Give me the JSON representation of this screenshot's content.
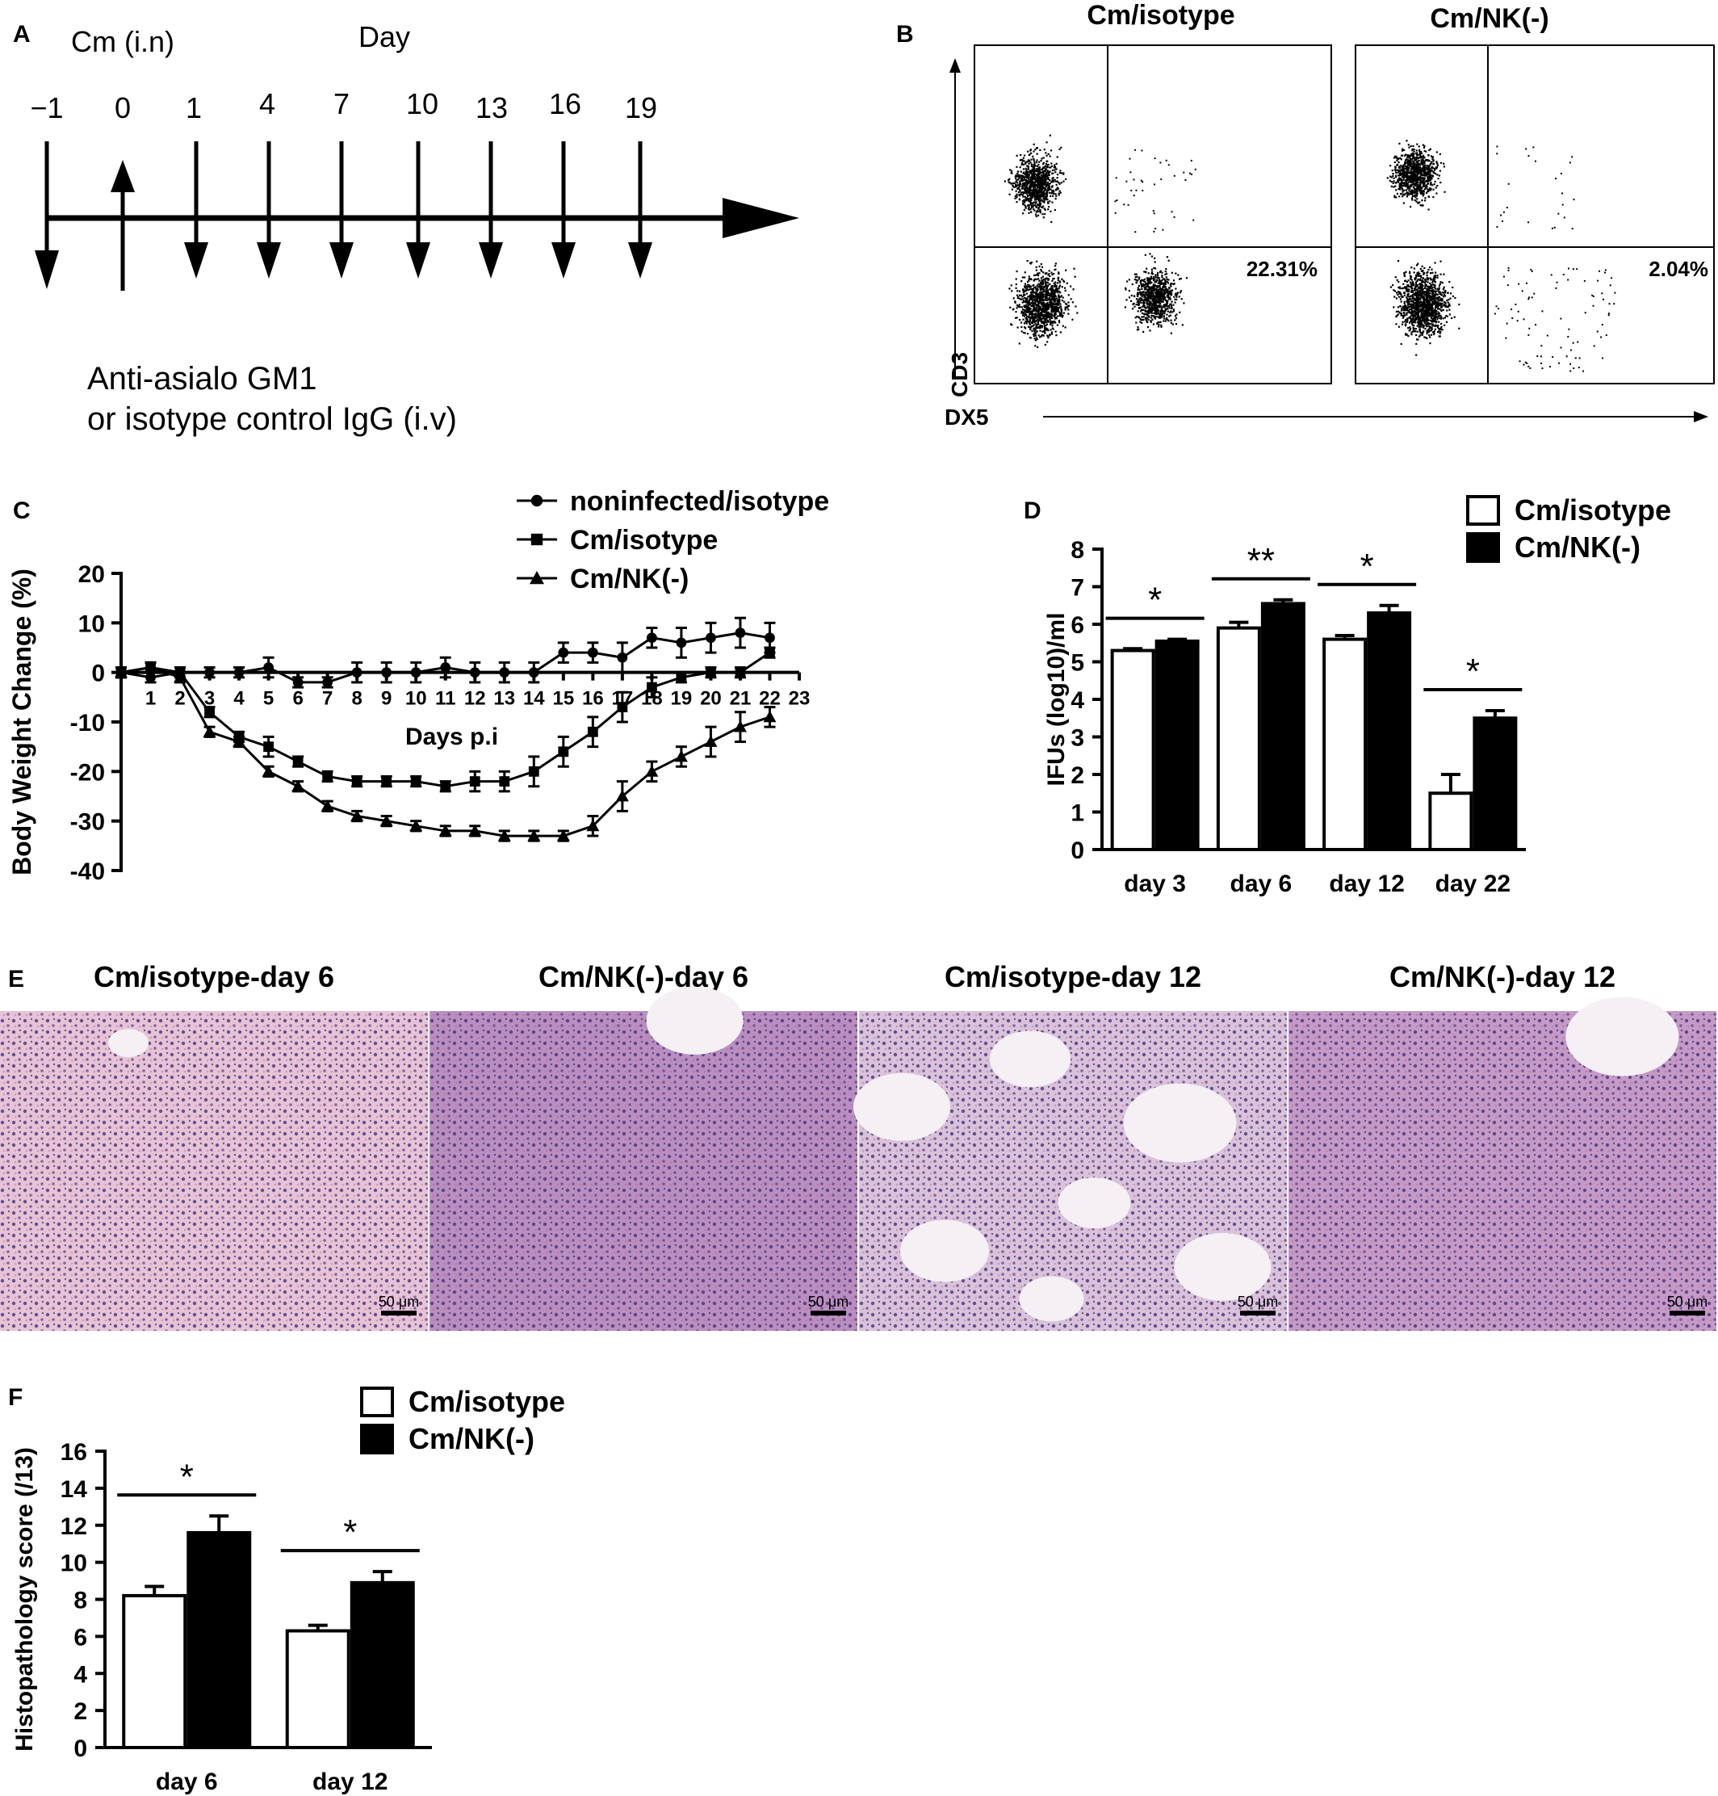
{
  "panels": {
    "A": {
      "letter": "A",
      "cm_label": "Cm (i.n)",
      "day_label": "Day",
      "days": [
        "−1",
        "0",
        "1",
        "4",
        "7",
        "10",
        "13",
        "16",
        "19"
      ],
      "treatment_line1": "Anti-asialo GM1",
      "treatment_line2": "or isotype control IgG (i.v)"
    },
    "B": {
      "letter": "B",
      "plots": [
        {
          "title": "Cm/isotype",
          "percent": "22.31%"
        },
        {
          "title": "Cm/NK(-)",
          "percent": "2.04%"
        }
      ],
      "y_axis": "CD3",
      "x_axis": "DX5"
    },
    "C": {
      "letter": "C"
    },
    "D": {
      "letter": "D"
    },
    "E": {
      "letter": "E",
      "images": [
        {
          "title": "Cm/isotype-day 6",
          "scale": "50 μm",
          "bg": "#e6c4d6"
        },
        {
          "title": "Cm/NK(-)-day 6",
          "scale": "50 μm",
          "bg": "#b98fc0"
        },
        {
          "title": "Cm/isotype-day 12",
          "scale": "50 μm",
          "bg": "#d9c3da"
        },
        {
          "title": "Cm/NK(-)-day 12",
          "scale": "50 μm",
          "bg": "#c49bc6"
        }
      ]
    },
    "F": {
      "letter": "F"
    }
  },
  "chart_data": [
    {
      "panel": "C",
      "type": "line",
      "ylabel": "Body Weight Change (%)",
      "xlabel": "Days p.i",
      "ylim": [
        -40,
        20
      ],
      "yticks": [
        20,
        10,
        0,
        -10,
        -20,
        -30,
        -40
      ],
      "xlim": [
        0,
        23
      ],
      "xticks": [
        1,
        2,
        3,
        4,
        5,
        6,
        7,
        8,
        9,
        10,
        11,
        12,
        13,
        14,
        15,
        16,
        17,
        18,
        19,
        20,
        21,
        22,
        23
      ],
      "legend_position": "top",
      "series": [
        {
          "name": "noninfected/isotype",
          "marker": "circle",
          "x": [
            0,
            1,
            2,
            3,
            4,
            5,
            6,
            7,
            8,
            9,
            10,
            11,
            12,
            13,
            14,
            15,
            16,
            17,
            18,
            19,
            20,
            21,
            22
          ],
          "y": [
            0,
            -1,
            0,
            0,
            0,
            1,
            -2,
            -2,
            0,
            0,
            0,
            1,
            0,
            0,
            0,
            4,
            4,
            3,
            7,
            6,
            7,
            8,
            7
          ],
          "err": [
            1,
            1,
            1,
            1,
            1,
            2,
            1,
            1,
            2,
            2,
            2,
            2,
            2,
            2,
            2,
            2,
            2,
            3,
            2,
            3,
            3,
            3,
            3
          ]
        },
        {
          "name": "Cm/isotype",
          "marker": "square",
          "x": [
            0,
            1,
            2,
            3,
            4,
            5,
            6,
            7,
            8,
            9,
            10,
            11,
            12,
            13,
            14,
            15,
            16,
            17,
            18,
            19,
            20,
            21,
            22
          ],
          "y": [
            0,
            1,
            0,
            -8,
            -13,
            -15,
            -18,
            -21,
            -22,
            -22,
            -22,
            -23,
            -22,
            -22,
            -20,
            -16,
            -12,
            -7,
            -3,
            -1,
            0,
            0,
            4
          ],
          "err": [
            1,
            1,
            1,
            1,
            1,
            2,
            1,
            1,
            1,
            1,
            1,
            1,
            2,
            2,
            3,
            3,
            3,
            3,
            2,
            1,
            1,
            1,
            1
          ]
        },
        {
          "name": "Cm/NK(-)",
          "marker": "triangle",
          "x": [
            0,
            1,
            2,
            3,
            4,
            5,
            6,
            7,
            8,
            9,
            10,
            11,
            12,
            13,
            14,
            15,
            16,
            17,
            18,
            19,
            20,
            21,
            22
          ],
          "y": [
            0,
            1,
            -1,
            -12,
            -14,
            -20,
            -23,
            -27,
            -29,
            -30,
            -31,
            -32,
            -32,
            -33,
            -33,
            -33,
            -31,
            -25,
            -20,
            -17,
            -14,
            -11,
            -9
          ],
          "err": [
            1,
            1,
            1,
            1,
            1,
            1,
            1,
            1,
            1,
            1,
            1,
            1,
            1,
            1,
            1,
            1,
            2,
            3,
            2,
            2,
            3,
            3,
            2
          ]
        }
      ]
    },
    {
      "panel": "D",
      "type": "bar",
      "ylabel": "IFUs (log10)/ml",
      "ylim": [
        0,
        8
      ],
      "yticks": [
        0,
        1,
        2,
        3,
        4,
        5,
        6,
        7,
        8
      ],
      "categories": [
        "day 3",
        "day 6",
        "day 12",
        "day 22"
      ],
      "legend_position": "top-right",
      "series": [
        {
          "name": "Cm/isotype",
          "fill": "#ffffff",
          "values": [
            5.3,
            5.9,
            5.6,
            1.5
          ],
          "err": [
            0.05,
            0.15,
            0.1,
            0.5
          ]
        },
        {
          "name": "Cm/NK(-)",
          "fill": "#000000",
          "values": [
            5.55,
            6.55,
            6.3,
            3.5
          ],
          "err": [
            0.05,
            0.1,
            0.2,
            0.2
          ]
        }
      ],
      "significance": [
        "*",
        "**",
        "*",
        "*"
      ]
    },
    {
      "panel": "F",
      "type": "bar",
      "ylabel": "Histopathology score (/13)",
      "ylim": [
        0,
        16
      ],
      "yticks": [
        0,
        2,
        4,
        6,
        8,
        10,
        12,
        14,
        16
      ],
      "categories": [
        "day 6",
        "day 12"
      ],
      "legend_position": "top",
      "series": [
        {
          "name": "Cm/isotype",
          "fill": "#ffffff",
          "values": [
            8.2,
            6.3
          ],
          "err": [
            0.5,
            0.3
          ]
        },
        {
          "name": "Cm/NK(-)",
          "fill": "#000000",
          "values": [
            11.6,
            8.9
          ],
          "err": [
            0.9,
            0.6
          ]
        }
      ],
      "significance": [
        "*",
        "*"
      ]
    }
  ]
}
